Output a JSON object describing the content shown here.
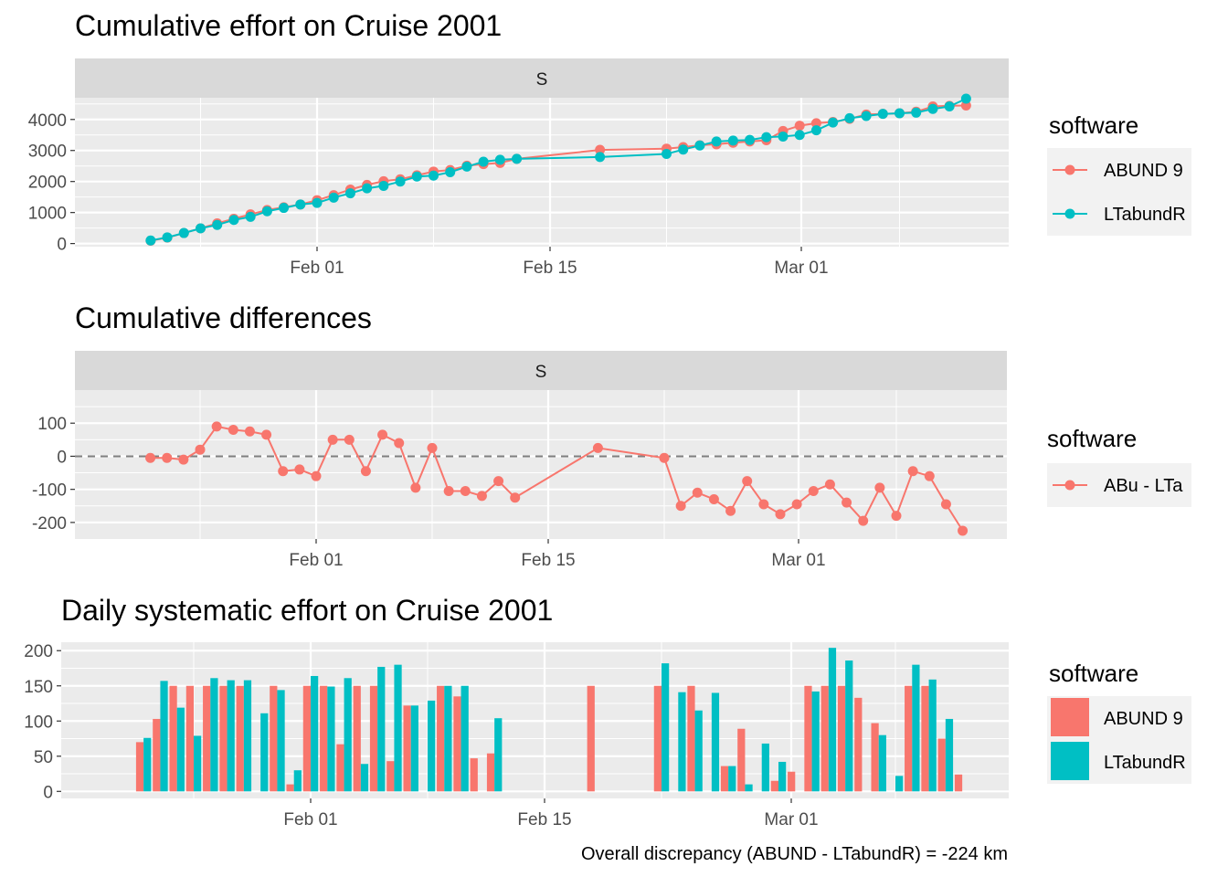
{
  "colors": {
    "abund": "#F8766D",
    "ltabund": "#00BFC4",
    "panel": "#EBEBEB",
    "strip": "#D9D9D9",
    "grid": "#FFFFFF",
    "refline": "#7F7F7F"
  },
  "chart_data": [
    {
      "type": "line",
      "title": "Cumulative effort on Cruise 2001",
      "facet": "S",
      "xlabel": "",
      "ylabel": "",
      "x_ticks": [
        "Feb 01",
        "Feb 15",
        "Mar 01"
      ],
      "y_ticks": [
        "0",
        "1000",
        "2000",
        "3000",
        "4000"
      ],
      "ylim": [
        -100,
        4700
      ],
      "legend": {
        "title": "software",
        "position": "right",
        "entries": [
          "ABUND 9",
          "LTabundR"
        ]
      },
      "series": [
        {
          "name": "ABUND 9",
          "x": [
            -10,
            -9,
            -8,
            -7,
            -6,
            -5,
            -4,
            -3,
            -2,
            -1,
            0,
            1,
            2,
            3,
            4,
            5,
            6,
            7,
            8,
            9,
            10,
            11,
            12,
            17,
            21,
            22,
            23,
            24,
            25,
            26,
            27,
            28,
            29,
            30,
            31,
            32,
            33,
            34,
            35,
            36,
            37,
            38,
            39
          ],
          "y": [
            90,
            190,
            340,
            490,
            650,
            800,
            940,
            1080,
            1170,
            1260,
            1400,
            1560,
            1740,
            1890,
            2010,
            2070,
            2200,
            2320,
            2370,
            2510,
            2560,
            2600,
            2730,
            3020,
            3060,
            3110,
            3170,
            3200,
            3250,
            3290,
            3330,
            3630,
            3800,
            3880,
            3920,
            4020,
            4160,
            4180,
            4200,
            4250,
            4420,
            4440,
            4450
          ]
        },
        {
          "name": "LTabundR",
          "x": [
            -10,
            -9,
            -8,
            -7,
            -6,
            -5,
            -4,
            -3,
            -2,
            -1,
            0,
            1,
            2,
            3,
            4,
            5,
            6,
            7,
            8,
            9,
            10,
            11,
            12,
            17,
            21,
            22,
            23,
            24,
            25,
            26,
            27,
            28,
            29,
            30,
            31,
            32,
            33,
            34,
            35,
            36,
            37,
            38,
            39
          ],
          "y": [
            100,
            200,
            340,
            490,
            600,
            760,
            860,
            1040,
            1150,
            1260,
            1310,
            1480,
            1620,
            1780,
            1860,
            2000,
            2160,
            2190,
            2300,
            2480,
            2640,
            2700,
            2730,
            2790,
            2890,
            3030,
            3160,
            3290,
            3320,
            3340,
            3430,
            3450,
            3500,
            3650,
            3900,
            4040,
            4110,
            4180,
            4200,
            4220,
            4340,
            4420,
            4670
          ]
        }
      ]
    },
    {
      "type": "line",
      "title": "Cumulative differences",
      "facet": "S",
      "xlabel": "",
      "ylabel": "",
      "x_ticks": [
        "Feb 01",
        "Feb 15",
        "Mar 01"
      ],
      "y_ticks": [
        "-200",
        "-100",
        "0",
        "100"
      ],
      "ylim": [
        -250,
        200
      ],
      "reference_line": 0,
      "legend": {
        "title": "software",
        "position": "right",
        "entries": [
          "ABu - LTa"
        ]
      },
      "series": [
        {
          "name": "ABu - LTa",
          "x": [
            -10,
            -9,
            -8,
            -7,
            -6,
            -5,
            -4,
            -3,
            -2,
            -1,
            0,
            1,
            2,
            3,
            4,
            5,
            6,
            7,
            8,
            9,
            10,
            11,
            12,
            17,
            21,
            22,
            23,
            24,
            25,
            26,
            27,
            28,
            29,
            30,
            31,
            32,
            33,
            34,
            35,
            36,
            37,
            38,
            39
          ],
          "y": [
            -5,
            -5,
            -10,
            20,
            90,
            80,
            75,
            65,
            -45,
            -40,
            -60,
            50,
            50,
            -45,
            65,
            40,
            -95,
            25,
            -105,
            -105,
            -120,
            -75,
            -125,
            25,
            -5,
            -150,
            -110,
            -130,
            -165,
            -75,
            -145,
            -175,
            -145,
            -105,
            -85,
            -140,
            -195,
            -95,
            -180,
            -45,
            -60,
            -145,
            -225
          ]
        }
      ]
    },
    {
      "type": "bar",
      "title": "Daily systematic effort on Cruise 2001",
      "xlabel": "",
      "ylabel": "",
      "x_ticks": [
        "Feb 01",
        "Feb 15",
        "Mar 01"
      ],
      "y_ticks": [
        "0",
        "50",
        "100",
        "150",
        "200"
      ],
      "ylim": [
        -10,
        212
      ],
      "caption": "Overall discrepancy (ABUND - LTabundR) = -224 km",
      "legend": {
        "title": "software",
        "position": "right",
        "entries": [
          "ABUND 9",
          "LTabundR"
        ]
      },
      "series": [
        {
          "name": "ABUND 9",
          "x": [
            -10,
            -9,
            -8,
            -7,
            -6,
            -5,
            -4,
            -3,
            -2,
            -1,
            0,
            1,
            2,
            3,
            4,
            5,
            6,
            7,
            8,
            9,
            10,
            11,
            12,
            17,
            21,
            22,
            23,
            24,
            25,
            26,
            27,
            28,
            29,
            30,
            31,
            32,
            33,
            34,
            35,
            36,
            37,
            38,
            39
          ],
          "values": [
            70,
            103,
            150,
            150,
            150,
            150,
            150,
            0,
            150,
            10,
            150,
            150,
            67,
            150,
            150,
            43,
            122,
            0,
            150,
            135,
            47,
            54,
            0,
            150,
            150,
            0,
            150,
            0,
            36,
            89,
            0,
            15,
            28,
            150,
            150,
            150,
            133,
            97,
            0,
            150,
            150,
            75,
            24
          ]
        },
        {
          "name": "LTabundR",
          "x": [
            -10,
            -9,
            -8,
            -7,
            -6,
            -5,
            -4,
            -3,
            -2,
            -1,
            0,
            1,
            2,
            3,
            4,
            5,
            6,
            7,
            8,
            9,
            10,
            11,
            12,
            17,
            21,
            22,
            23,
            24,
            25,
            26,
            27,
            28,
            29,
            30,
            31,
            32,
            33,
            34,
            35,
            36,
            37,
            38,
            39
          ],
          "values": [
            76,
            157,
            119,
            79,
            161,
            158,
            158,
            111,
            144,
            30,
            164,
            149,
            161,
            39,
            177,
            180,
            122,
            129,
            150,
            150,
            0,
            104,
            0,
            0,
            182,
            141,
            115,
            140,
            36,
            10,
            68,
            42,
            0,
            142,
            204,
            186,
            0,
            80,
            22,
            180,
            159,
            103,
            0
          ]
        }
      ]
    }
  ]
}
